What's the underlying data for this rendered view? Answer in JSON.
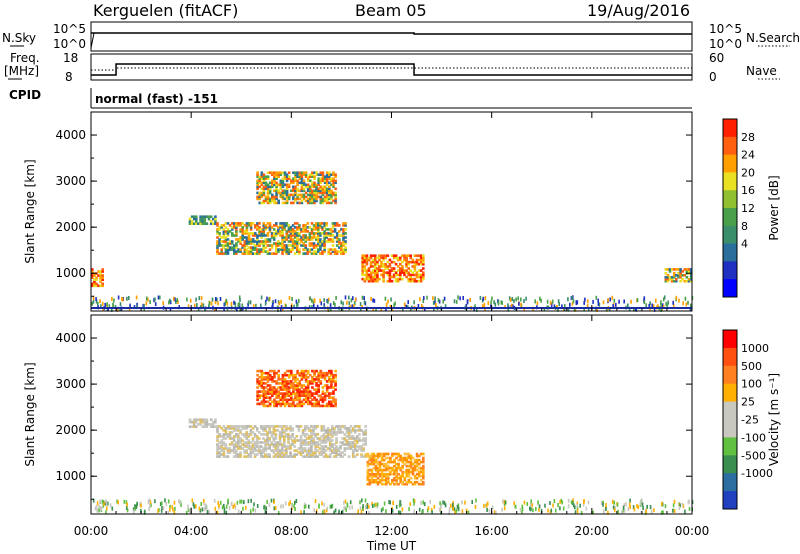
{
  "header": {
    "station": "Kerguelen (fitACF)",
    "beam": "Beam 05",
    "date": "19/Aug/2016"
  },
  "top_panels": {
    "nsky_label": "N.Sky",
    "nsky_ticks": [
      "10^5",
      "10^0"
    ],
    "nsearch_label": "N.Search",
    "nsearch_ticks": [
      "10^5",
      "10^0"
    ],
    "freq_label": "Freq.",
    "freq_unit": "[MHz]",
    "freq_ticks": [
      "18",
      "8"
    ],
    "nave_label": "Nave",
    "nave_ticks": [
      "60",
      "0"
    ],
    "cpid_label": "CPID",
    "cpid_value": "normal (fast) -151"
  },
  "chart_data": [
    {
      "type": "heatmap",
      "name": "power",
      "ylabel": "Slant Range [km]",
      "ylim": [
        180,
        4500
      ],
      "yticks": [
        "4000",
        "3000",
        "2000",
        "1000"
      ],
      "xlim": [
        0,
        24
      ],
      "colorbar_label": "Power [dB]",
      "colorbar_ticks": [
        "28",
        "24",
        "20",
        "16",
        "12",
        "8",
        "4"
      ],
      "colorbar_colors": [
        "#0000ff",
        "#2030c0",
        "#2a6f9c",
        "#3a8f6a",
        "#4aa04a",
        "#90c030",
        "#e8e020",
        "#ffa000",
        "#ff6010",
        "#ff2000"
      ],
      "regions": [
        {
          "t0": 3.9,
          "t1": 5.0,
          "r0": 2050,
          "r1": 2250,
          "level": "green"
        },
        {
          "t0": 5.0,
          "t1": 10.2,
          "r0": 1400,
          "r1": 2100,
          "level": "orange"
        },
        {
          "t0": 6.6,
          "t1": 9.8,
          "r0": 2500,
          "r1": 3200,
          "level": "orange"
        },
        {
          "t0": 10.8,
          "t1": 13.3,
          "r0": 800,
          "r1": 1400,
          "level": "red"
        },
        {
          "t0": 0.0,
          "t1": 0.5,
          "r0": 700,
          "r1": 1100,
          "level": "red"
        },
        {
          "t0": 22.9,
          "t1": 24.0,
          "r0": 800,
          "r1": 1100,
          "level": "orange"
        }
      ]
    },
    {
      "type": "heatmap",
      "name": "velocity",
      "ylabel": "Slant Range [km]",
      "ylim": [
        180,
        4500
      ],
      "yticks": [
        "4000",
        "3000",
        "2000",
        "1000"
      ],
      "xlim": [
        0,
        24
      ],
      "xticks": [
        "00:00",
        "04:00",
        "08:00",
        "12:00",
        "16:00",
        "20:00",
        "00:00"
      ],
      "xlabel": "Time UT",
      "colorbar_label": "Velocity [m s⁻¹]",
      "colorbar_ticks": [
        "1000",
        "500",
        "100",
        "25",
        "-25",
        "-100",
        "-500",
        "-1000"
      ],
      "colorbar_colors": [
        "#2040c0",
        "#2a6fa0",
        "#3a8f50",
        "#60c040",
        "#c8c8c0",
        "#c8c8c0",
        "#ffb000",
        "#ff8020",
        "#ff5010",
        "#ff0000"
      ],
      "regions": [
        {
          "t0": 3.9,
          "t1": 5.0,
          "r0": 2050,
          "r1": 2250,
          "level": "grey"
        },
        {
          "t0": 5.0,
          "t1": 11.0,
          "r0": 1400,
          "r1": 2100,
          "level": "grey"
        },
        {
          "t0": 6.6,
          "t1": 9.8,
          "r0": 2500,
          "r1": 3300,
          "level": "orange-red"
        },
        {
          "t0": 11.0,
          "t1": 13.3,
          "r0": 800,
          "r1": 1500,
          "level": "orange"
        }
      ]
    }
  ]
}
